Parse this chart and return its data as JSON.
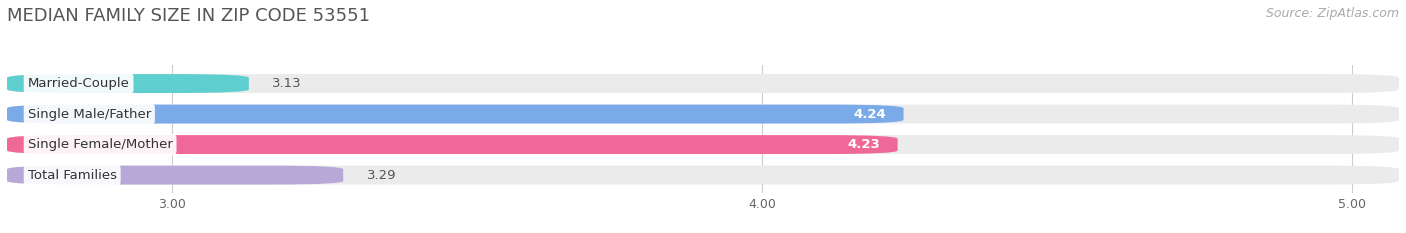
{
  "title": "MEDIAN FAMILY SIZE IN ZIP CODE 53551",
  "source": "Source: ZipAtlas.com",
  "categories": [
    "Married-Couple",
    "Single Male/Father",
    "Single Female/Mother",
    "Total Families"
  ],
  "values": [
    3.13,
    4.24,
    4.23,
    3.29
  ],
  "bar_colors": [
    "#5ecece",
    "#7baae8",
    "#f06898",
    "#b8a8d8"
  ],
  "x_min": 2.72,
  "x_max": 5.08,
  "x_ticks": [
    3.0,
    4.0,
    5.0
  ],
  "x_tick_labels": [
    "3.00",
    "4.00",
    "5.00"
  ],
  "bar_height": 0.62,
  "background_color": "#ffffff",
  "bar_bg_color": "#ebebeb",
  "title_fontsize": 13,
  "source_fontsize": 9,
  "label_fontsize": 9.5,
  "value_fontsize": 9.5,
  "tick_fontsize": 9
}
